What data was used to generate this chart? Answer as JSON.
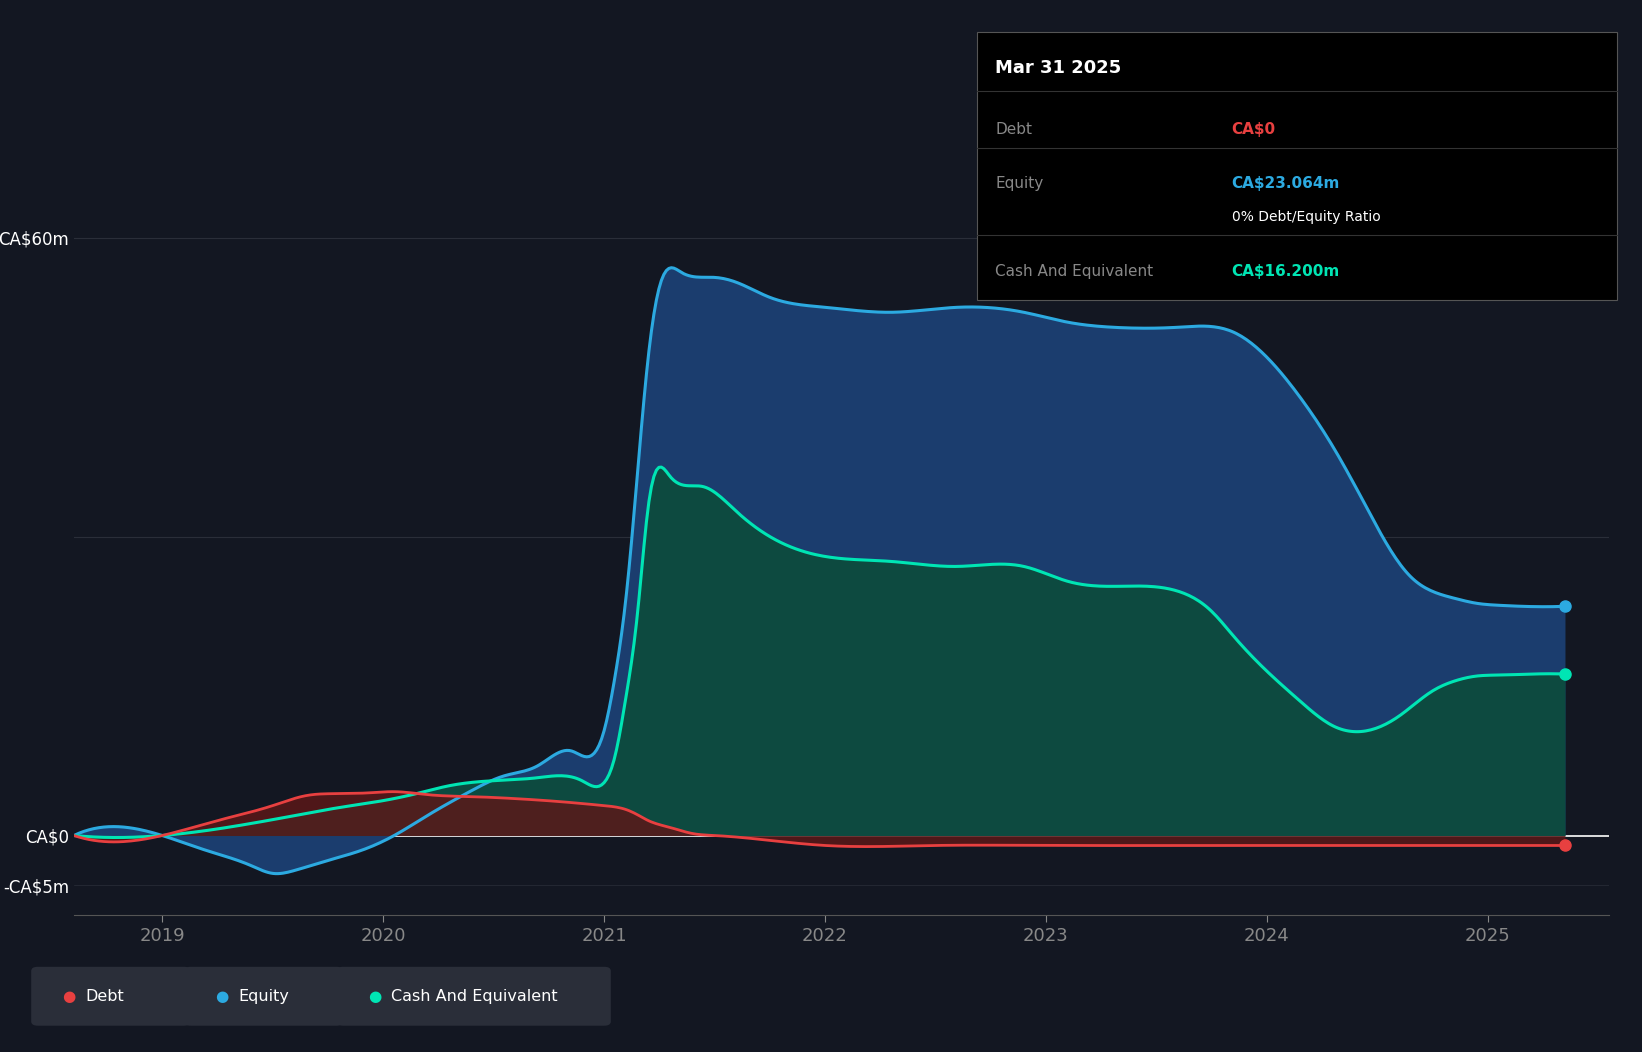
{
  "bg_color": "#131722",
  "plot_bg_color": "#131722",
  "grid_color": "#2a2e39",
  "yticks_labels": [
    "CA$60m",
    "CA$0",
    "-CA$5m"
  ],
  "yticks_values": [
    60,
    0,
    -5
  ],
  "xticks": [
    2019,
    2020,
    2021,
    2022,
    2023,
    2024,
    2025
  ],
  "ylim": [
    -8,
    68
  ],
  "xlim": [
    2018.6,
    2025.55
  ],
  "debt_color": "#e84040",
  "equity_color": "#2caae1",
  "cash_color": "#00e5b4",
  "equity_fill": "#1b3d6e",
  "cash_fill": "#0d4a40",
  "debt_fill": "#5a1818",
  "tooltip": {
    "date": "Mar 31 2025",
    "debt_label": "Debt",
    "debt_value": "CA$0",
    "debt_color": "#e84040",
    "equity_label": "Equity",
    "equity_value": "CA$23.064m",
    "equity_color": "#2caae1",
    "ratio_label": "0% Debt/Equity Ratio",
    "cash_label": "Cash And Equivalent",
    "cash_value": "CA$16.200m",
    "cash_color": "#00e5b4"
  },
  "legend_bg": "#2a2e39",
  "debt_x": [
    2018.6,
    2019.0,
    2019.25,
    2019.5,
    2019.65,
    2019.8,
    2019.95,
    2020.05,
    2020.2,
    2020.4,
    2020.6,
    2020.8,
    2021.0,
    2021.1,
    2021.15,
    2021.2,
    2021.3,
    2021.4,
    2021.5,
    2022.0,
    2022.5,
    2023.0,
    2023.5,
    2024.0,
    2024.5,
    2025.0,
    2025.35
  ],
  "debt_y": [
    0.0,
    0.0,
    1.5,
    3.0,
    4.0,
    4.2,
    4.3,
    4.4,
    4.1,
    3.9,
    3.7,
    3.4,
    3.0,
    2.6,
    2.1,
    1.5,
    0.8,
    0.2,
    0.0,
    -1.0,
    -1.0,
    -1.0,
    -1.0,
    -1.0,
    -1.0,
    -1.0,
    -1.0
  ],
  "equity_x": [
    2018.6,
    2019.0,
    2019.2,
    2019.4,
    2019.5,
    2019.6,
    2019.75,
    2019.9,
    2020.05,
    2020.2,
    2020.4,
    2020.55,
    2020.7,
    2020.85,
    2021.0,
    2021.05,
    2021.1,
    2021.15,
    2021.2,
    2021.25,
    2021.35,
    2021.5,
    2021.6,
    2021.75,
    2022.0,
    2022.3,
    2022.6,
    2022.9,
    2023.1,
    2023.3,
    2023.6,
    2023.85,
    2024.0,
    2024.15,
    2024.3,
    2024.45,
    2024.55,
    2024.65,
    2024.75,
    2024.85,
    2024.95,
    2025.05,
    2025.15,
    2025.35
  ],
  "equity_y": [
    0.0,
    0.0,
    -1.5,
    -3.0,
    -3.8,
    -3.5,
    -2.5,
    -1.5,
    0.0,
    2.0,
    4.5,
    6.0,
    7.0,
    8.5,
    10.5,
    16.0,
    24.0,
    36.0,
    48.0,
    55.0,
    56.5,
    56.0,
    55.5,
    54.0,
    53.0,
    52.5,
    53.0,
    52.5,
    51.5,
    51.0,
    51.0,
    50.5,
    48.0,
    44.0,
    39.0,
    33.0,
    29.0,
    26.0,
    24.5,
    23.8,
    23.3,
    23.1,
    23.0,
    23.0
  ],
  "cash_x": [
    2018.6,
    2019.0,
    2019.2,
    2019.4,
    2019.6,
    2019.8,
    2020.0,
    2020.15,
    2020.3,
    2020.5,
    2020.7,
    2020.9,
    2021.0,
    2021.05,
    2021.1,
    2021.15,
    2021.2,
    2021.3,
    2021.45,
    2021.6,
    2021.75,
    2022.0,
    2022.3,
    2022.6,
    2022.9,
    2023.1,
    2023.3,
    2023.6,
    2023.75,
    2023.85,
    2024.0,
    2024.15,
    2024.3,
    2024.45,
    2024.6,
    2024.75,
    2024.85,
    2024.95,
    2025.05,
    2025.2,
    2025.35
  ],
  "cash_y": [
    0.0,
    0.0,
    0.5,
    1.2,
    2.0,
    2.8,
    3.5,
    4.2,
    5.0,
    5.5,
    5.8,
    5.5,
    5.3,
    8.0,
    14.0,
    22.0,
    33.0,
    36.0,
    35.0,
    32.5,
    30.0,
    28.0,
    27.5,
    27.0,
    27.0,
    25.5,
    25.0,
    24.5,
    22.5,
    20.0,
    16.5,
    13.5,
    11.0,
    10.5,
    12.0,
    14.5,
    15.5,
    16.0,
    16.1,
    16.2,
    16.2
  ]
}
